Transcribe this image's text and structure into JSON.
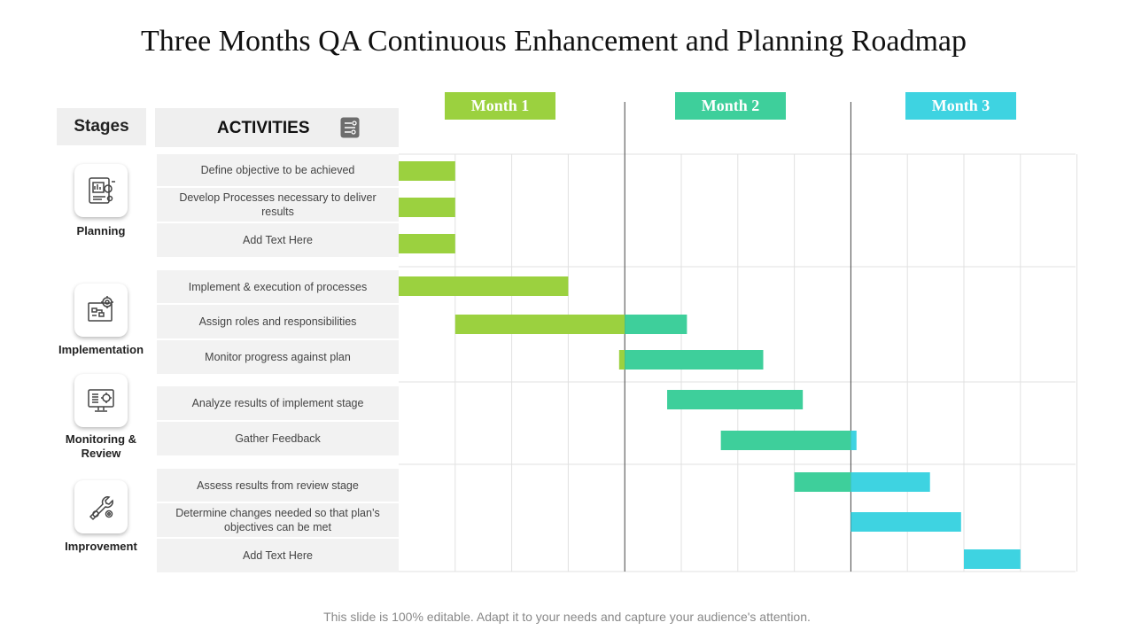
{
  "title": "Three Months QA Continuous Enhancement and Planning Roadmap",
  "headers": {
    "stages": "Stages",
    "activities": "ACTIVITIES"
  },
  "months": [
    {
      "label": "Month 1",
      "color": "#9bd13f"
    },
    {
      "label": "Month 2",
      "color": "#3ecf9b"
    },
    {
      "label": "Month 3",
      "color": "#3ed3e1"
    }
  ],
  "stages": [
    {
      "name": "Planning",
      "icon": "report-chart-icon"
    },
    {
      "name": "Implementation",
      "icon": "gear-workflow-icon"
    },
    {
      "name": "Monitoring & Review",
      "icon": "monitor-icon"
    },
    {
      "name": "Improvement",
      "icon": "wrench-gear-icon"
    }
  ],
  "activities": [
    {
      "label": "Define objective to be achieved",
      "stage": 0
    },
    {
      "label": "Develop  Processes necessary to deliver results",
      "stage": 0
    },
    {
      "label": "Add Text Here",
      "stage": 0
    },
    {
      "label": "Implement  & execution of processes",
      "stage": 1
    },
    {
      "label": "Assign roles and responsibilities",
      "stage": 1
    },
    {
      "label": "Monitor progress against plan",
      "stage": 1
    },
    {
      "label": "Analyze results of implement stage",
      "stage": 2
    },
    {
      "label": "Gather Feedback",
      "stage": 2
    },
    {
      "label": "Assess results from  review  stage",
      "stage": 3
    },
    {
      "label": "Determine changes needed so that plan’s objectives can be met",
      "stage": 3
    },
    {
      "label": "Add Text Here",
      "stage": 3
    }
  ],
  "chart_data": {
    "type": "gantt",
    "time_unit": "week",
    "range": [
      0,
      12
    ],
    "month_boundaries": [
      4,
      8
    ],
    "tasks": [
      {
        "activity": "Define objective to be achieved",
        "start": 0,
        "end": 1
      },
      {
        "activity": "Develop  Processes necessary to deliver results",
        "start": 0,
        "end": 1
      },
      {
        "activity": "Add Text Here",
        "start": 0,
        "end": 1
      },
      {
        "activity": "Implement  & execution of processes",
        "start": 0,
        "end": 3
      },
      {
        "activity": "Assign roles and responsibilities",
        "start": 1,
        "end": 5.1
      },
      {
        "activity": "Monitor progress against plan",
        "start": 3.9,
        "end": 6.45
      },
      {
        "activity": "Analyze results of implement stage",
        "start": 4.75,
        "end": 7.15
      },
      {
        "activity": "Gather Feedback",
        "start": 5.7,
        "end": 8.1
      },
      {
        "activity": "Assess results from  review  stage",
        "start": 7,
        "end": 9.4
      },
      {
        "activity": "Determine changes needed so that plan’s objectives can be met",
        "start": 8,
        "end": 9.95
      },
      {
        "activity": "Add Text Here",
        "start": 10,
        "end": 11
      }
    ]
  },
  "footer": "This slide is 100% editable. Adapt it to your needs and capture your audience's attention."
}
